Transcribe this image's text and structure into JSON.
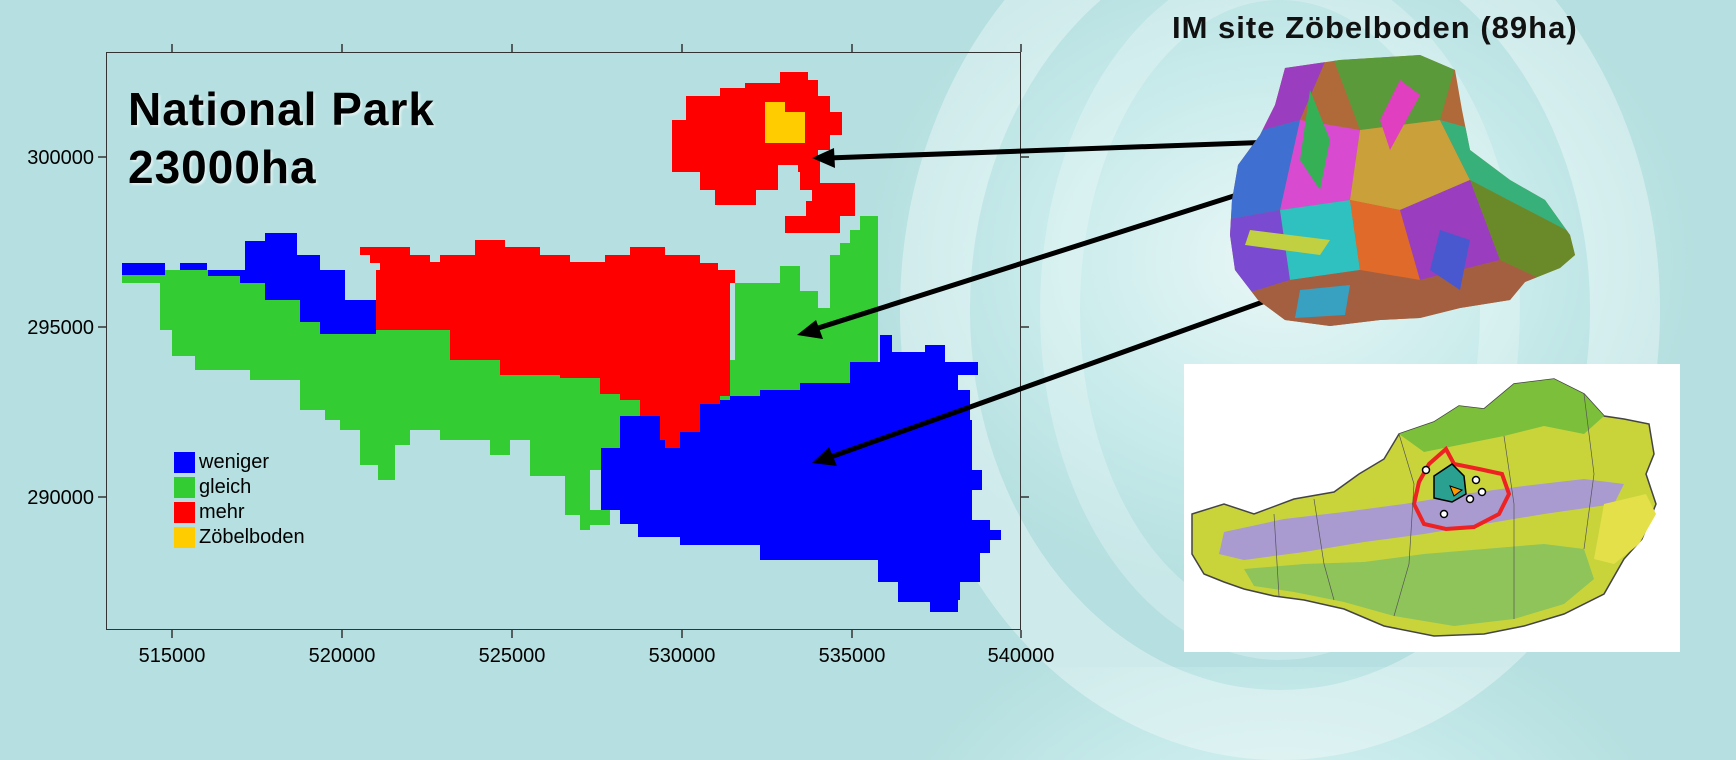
{
  "map": {
    "title_line1": "National Park",
    "title_line2": "23000ha",
    "x_ticks": [
      "515000",
      "520000",
      "525000",
      "530000",
      "535000",
      "540000"
    ],
    "y_ticks": [
      "300000",
      "295000",
      "290000"
    ],
    "legend": [
      {
        "label": "weniger",
        "color": "#0000ff"
      },
      {
        "label": "gleich",
        "color": "#33cc33"
      },
      {
        "label": "mehr",
        "color": "#ff0000"
      },
      {
        "label": "Zöbelboden",
        "color": "#ffcc00"
      }
    ]
  },
  "site": {
    "title": "IM site Zöbelboden (89ha)"
  },
  "colors": {
    "background": "#b3dddd",
    "weniger": "#0000ff",
    "gleich": "#33cc33",
    "mehr": "#ff0000",
    "zoebelboden": "#ffcc00",
    "austria_outline": "#ee2222"
  }
}
